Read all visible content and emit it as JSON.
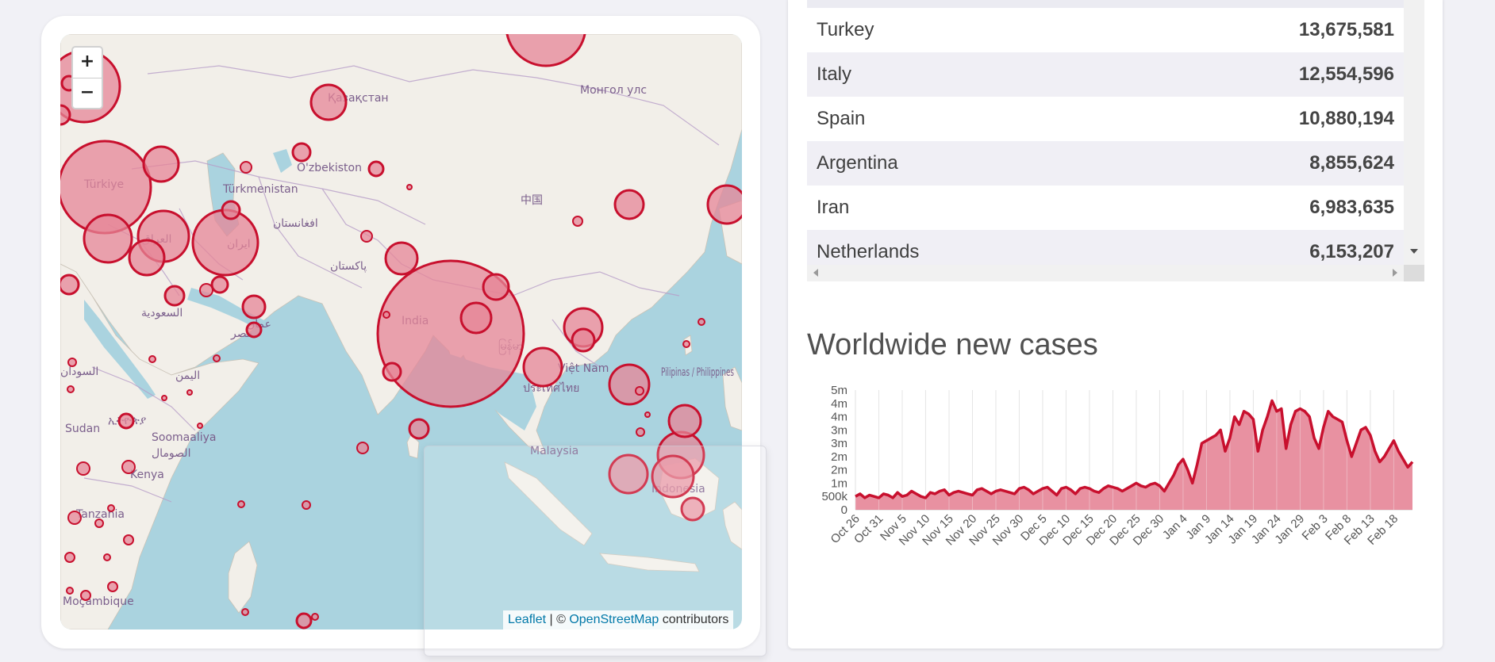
{
  "map": {
    "zoom_in_label": "+",
    "zoom_out_label": "−",
    "attribution": {
      "leaflet": "Leaflet",
      "separator": " | © ",
      "osm": "OpenStreetMap",
      "suffix": " contributors"
    },
    "place_labels": [
      "Қазақстан",
      "Монгол улс",
      "O'zbekiston",
      "Türkmenistan",
      "Türkiye",
      "中国",
      "افغانستان",
      "ایران",
      "العراق",
      "پاکستان",
      "السعودية",
      "India",
      "مصر",
      "السودان",
      "اليمن",
      "Sudan",
      "ኢትዮጵያ",
      "Soomaaliya",
      "الصومال",
      "Kenya",
      "Tanzania",
      "Moçambique",
      "မြန်မာ",
      "Việt Nam",
      "ประเทศไทย",
      "Pilipinas / Philippines",
      "Malaysia",
      "Indonesia",
      "عمان"
    ],
    "colors": {
      "water": "#aad3df",
      "land": "#f2efe9",
      "border": "#b79dc8",
      "marker_stroke": "#c8102e",
      "marker_fill": "#e58597"
    }
  },
  "table": {
    "rows": [
      {
        "country": "Turkey",
        "cases": "13,675,581"
      },
      {
        "country": "Italy",
        "cases": "12,554,596"
      },
      {
        "country": "Spain",
        "cases": "10,880,194"
      },
      {
        "country": "Argentina",
        "cases": "8,855,624"
      },
      {
        "country": "Iran",
        "cases": "6,983,635"
      },
      {
        "country": "Netherlands",
        "cases": "6,153,207"
      }
    ]
  },
  "chart": {
    "title": "Worldwide new cases"
  },
  "chart_data": {
    "type": "area",
    "title": "Worldwide new cases",
    "xlabel": "",
    "ylabel": "",
    "y_tick_labels": [
      "0",
      "500k",
      "1m",
      "2m",
      "2m",
      "3m",
      "3m",
      "4m",
      "4m",
      "5m"
    ],
    "x_tick_labels": [
      "Oct 26",
      "Oct 31",
      "Nov 5",
      "Nov 10",
      "Nov 15",
      "Nov 20",
      "Nov 25",
      "Nov 30",
      "Dec 5",
      "Dec 10",
      "Dec 15",
      "Dec 20",
      "Dec 25",
      "Dec 30",
      "Jan 4",
      "Jan 9",
      "Jan 14",
      "Jan 19",
      "Jan 24",
      "Jan 29",
      "Feb 3",
      "Feb 8",
      "Feb 13",
      "Feb 18"
    ],
    "x_start": "Oct 26",
    "x_end": "Feb 22",
    "ylim": [
      0,
      4500000
    ],
    "grid": "vertical",
    "color": "#c8102e",
    "fill": "#e58597",
    "values": [
      500000,
      600000,
      450000,
      550000,
      500000,
      450000,
      600000,
      550000,
      450000,
      650000,
      500000,
      550000,
      700000,
      600000,
      500000,
      450000,
      650000,
      600000,
      700000,
      750000,
      550000,
      650000,
      700000,
      650000,
      600000,
      550000,
      750000,
      800000,
      700000,
      600000,
      700000,
      750000,
      700000,
      650000,
      600000,
      800000,
      850000,
      750000,
      600000,
      700000,
      800000,
      850000,
      700000,
      550000,
      800000,
      850000,
      750000,
      600000,
      800000,
      850000,
      800000,
      700000,
      650000,
      800000,
      900000,
      850000,
      800000,
      700000,
      800000,
      900000,
      1000000,
      900000,
      850000,
      950000,
      1000000,
      900000,
      700000,
      1000000,
      1300000,
      1700000,
      1900000,
      1500000,
      1000000,
      1700000,
      2500000,
      2600000,
      2700000,
      2800000,
      3000000,
      2200000,
      2700000,
      3500000,
      3200000,
      3700000,
      3600000,
      3400000,
      2200000,
      3000000,
      3500000,
      4100000,
      3700000,
      3800000,
      2300000,
      3200000,
      3700000,
      3800000,
      3700000,
      3500000,
      2700000,
      2300000,
      3100000,
      3700000,
      3500000,
      3400000,
      3300000,
      2600000,
      2000000,
      2500000,
      3000000,
      3100000,
      2800000,
      2200000,
      1800000,
      2000000,
      2300000,
      2600000,
      2200000,
      1900000,
      1600000,
      1800000
    ]
  }
}
